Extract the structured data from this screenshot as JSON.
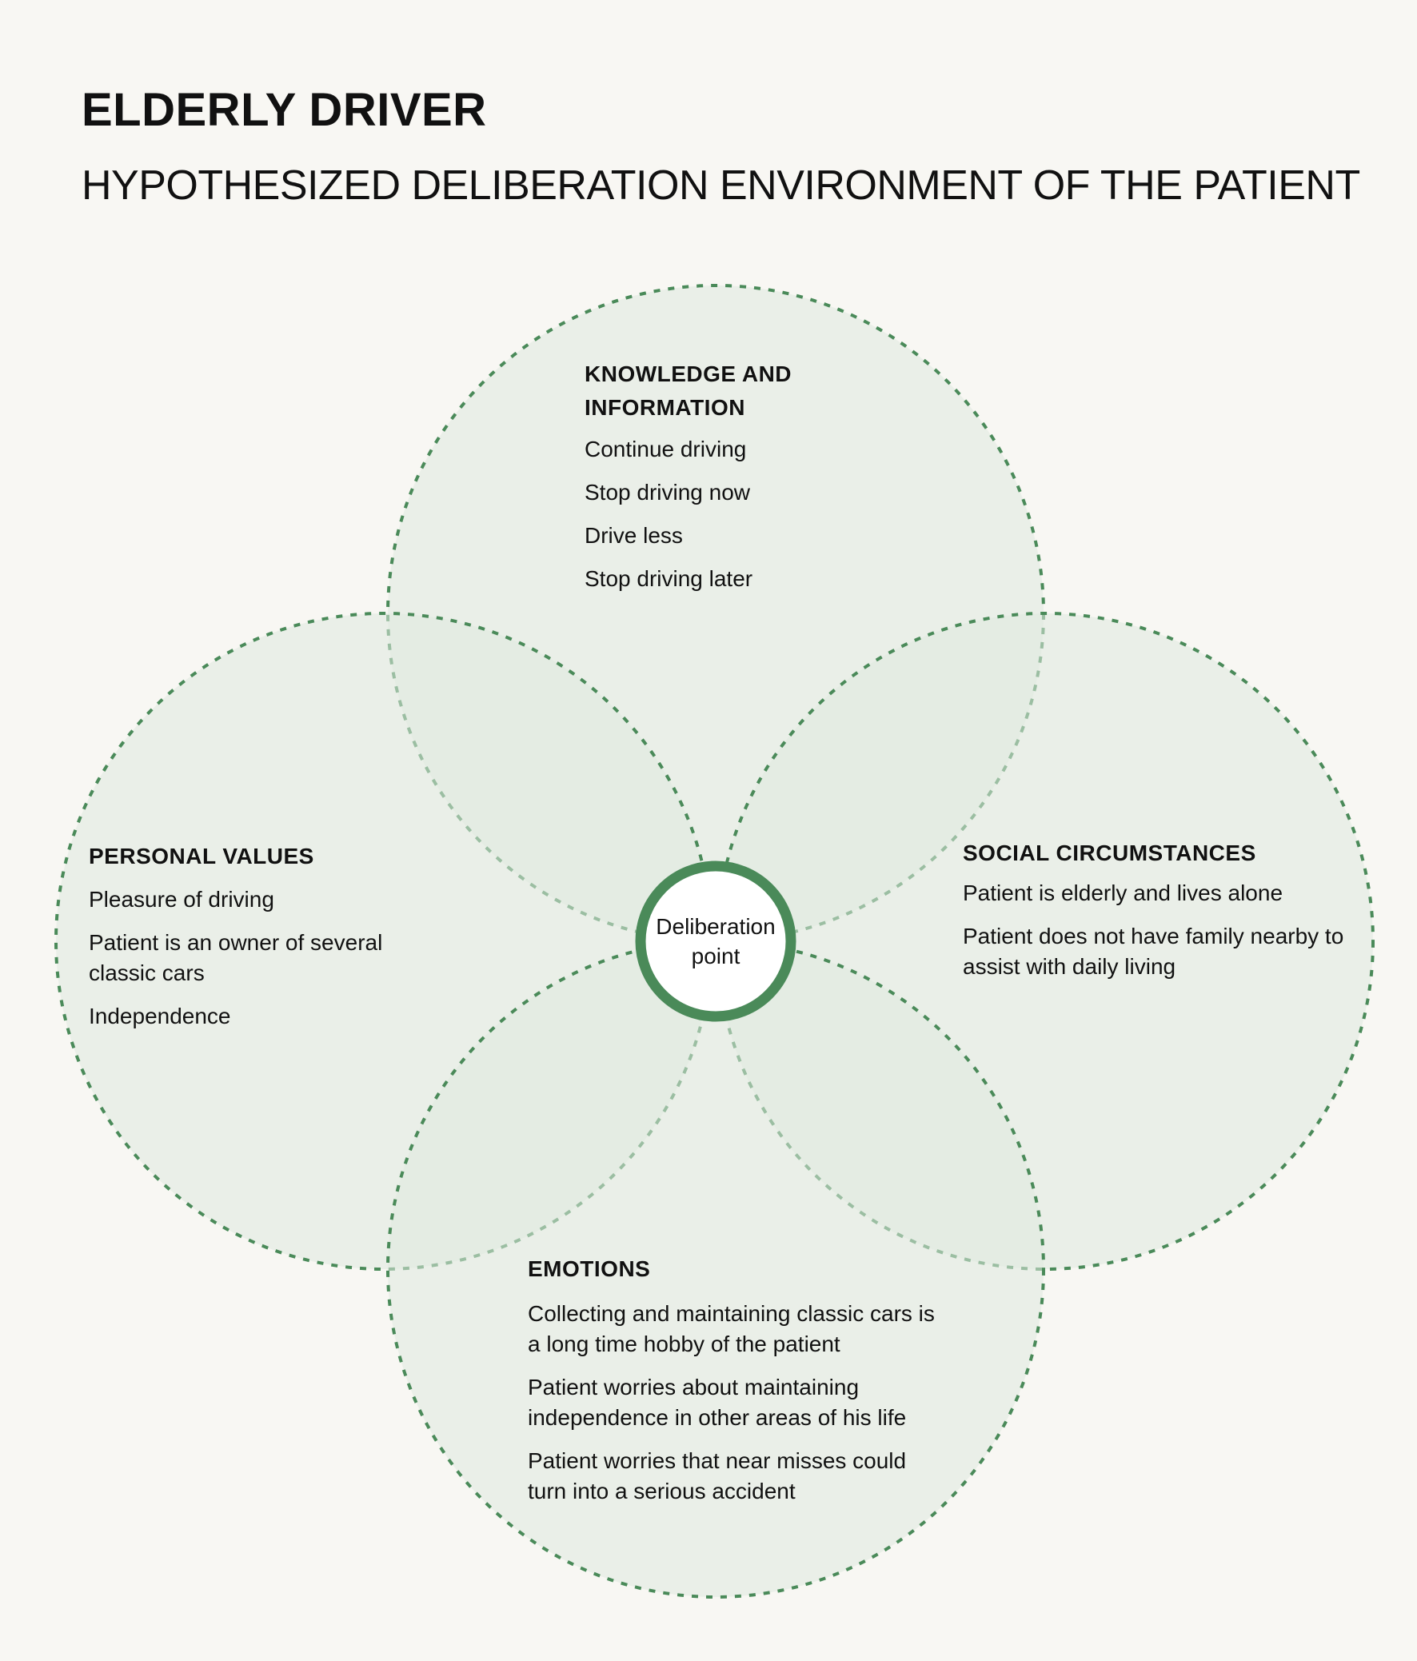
{
  "title": "ELDERLY DRIVER",
  "subtitle": "HYPOTHESIZED DELIBERATION ENVIRONMENT OF THE PATIENT",
  "colors": {
    "accent": "#4a8a59",
    "circle_fill": "#dfe9df",
    "background": "#f8f7f3"
  },
  "center": {
    "label_line1": "Deliberation",
    "label_line2": "point"
  },
  "circles": {
    "knowledge": {
      "heading_line1": "KNOWLEDGE AND",
      "heading_line2": "INFORMATION",
      "items": [
        "Continue driving",
        "Stop driving now",
        "Drive less",
        "Stop driving later"
      ]
    },
    "personal_values": {
      "heading": "PERSONAL VALUES",
      "items": [
        "Pleasure of driving",
        "Patient is an owner of several classic cars",
        "Independence"
      ]
    },
    "social": {
      "heading": "SOCIAL CIRCUMSTANCES",
      "items": [
        "Patient is elderly and lives alone",
        "Patient does not have family nearby to assist with daily living"
      ]
    },
    "emotions": {
      "heading": "EMOTIONS",
      "items": [
        "Collecting and maintaining classic cars is a long time hobby of the patient",
        "Patient worries about maintaining independence in other areas of his life",
        "Patient worries that near misses could turn into a serious accident"
      ]
    }
  }
}
